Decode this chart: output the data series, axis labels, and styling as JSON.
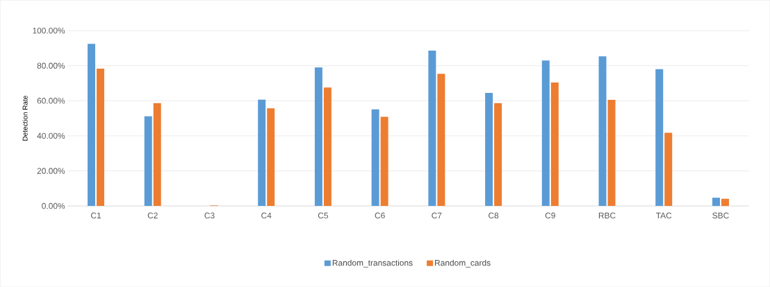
{
  "chart_data": {
    "type": "bar",
    "ylabel": "Detection Rate",
    "categories": [
      "C1",
      "C2",
      "C3",
      "C4",
      "C5",
      "C6",
      "C7",
      "C8",
      "C9",
      "RBC",
      "TAC",
      "SBC"
    ],
    "series": [
      {
        "name": "Random_transactions",
        "color": "#5b9bd5",
        "values": [
          92.5,
          51.1,
          0,
          60.6,
          79.0,
          55.1,
          88.6,
          64.5,
          83.0,
          85.3,
          78.0,
          4.7
        ]
      },
      {
        "name": "Random_cards",
        "color": "#ed7d31",
        "values": [
          78.3,
          58.7,
          0.3,
          55.7,
          67.6,
          50.8,
          75.4,
          58.7,
          70.4,
          60.5,
          41.8,
          4.1
        ]
      }
    ],
    "ylim": [
      0,
      100
    ],
    "yticks": [
      {
        "value": 0,
        "label": "0.00%"
      },
      {
        "value": 20,
        "label": "20.00%"
      },
      {
        "value": 40,
        "label": "40.00%"
      },
      {
        "value": 60,
        "label": "60.00%"
      },
      {
        "value": 80,
        "label": "80.00%"
      },
      {
        "value": 100,
        "label": "100.00%"
      }
    ],
    "grid": "y",
    "legend": "bottom"
  }
}
